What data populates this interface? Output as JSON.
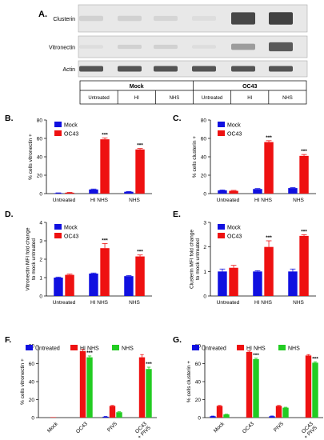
{
  "panel_a": {
    "letter": "A.",
    "rows": [
      "Clusterin",
      "Vitronectin",
      "Actin"
    ],
    "groups": [
      "Mock",
      "OC43"
    ],
    "lanes": [
      "Untreated",
      "HI",
      "NHS",
      "Untreated",
      "HI",
      "NHS"
    ]
  },
  "colors": {
    "mock": "#1010e0",
    "oc43": "#ee1111",
    "untreated": "#1010e0",
    "hi_nhs": "#ee1111",
    "nhs": "#22cc22"
  },
  "chart_data": [
    {
      "id": "B",
      "letter": "B.",
      "type": "bar",
      "ylabel": "% cells vitronectin +",
      "categories": [
        "Untreated",
        "HI NHS",
        "NHS"
      ],
      "ylim": [
        0,
        80
      ],
      "yticks": [
        0,
        20,
        40,
        60,
        80
      ],
      "series": [
        {
          "name": "Mock",
          "color": "#1010e0",
          "values": [
            0.5,
            4.5,
            2
          ],
          "errors": [
            0.3,
            0.5,
            0.3
          ],
          "sig": [
            "",
            "",
            ""
          ]
        },
        {
          "name": "OC43",
          "color": "#ee1111",
          "values": [
            1,
            59,
            48
          ],
          "errors": [
            0.3,
            1.5,
            1
          ],
          "sig": [
            "",
            "***",
            "***"
          ]
        }
      ]
    },
    {
      "id": "C",
      "letter": "C.",
      "type": "bar",
      "ylabel": "% cells clusterin +",
      "categories": [
        "Untreated",
        "HI NHS",
        "NHS"
      ],
      "ylim": [
        0,
        80
      ],
      "yticks": [
        0,
        20,
        40,
        60,
        80
      ],
      "series": [
        {
          "name": "Mock",
          "color": "#1010e0",
          "values": [
            3.5,
            5,
            6
          ],
          "errors": [
            0.5,
            0.5,
            0.5
          ],
          "sig": [
            "",
            "",
            ""
          ]
        },
        {
          "name": "OC43",
          "color": "#ee1111",
          "values": [
            3,
            56,
            41
          ],
          "errors": [
            0.5,
            1.5,
            1.5
          ],
          "sig": [
            "",
            "***",
            "***"
          ]
        }
      ]
    },
    {
      "id": "D",
      "letter": "D.",
      "type": "bar",
      "ylabel": "Vitronectin MFI fold change to mock untreated",
      "categories": [
        "Untreated",
        "HI NHS",
        "NHS"
      ],
      "ylim": [
        0,
        4
      ],
      "yticks": [
        0,
        1,
        2,
        3,
        4
      ],
      "series": [
        {
          "name": "Mock",
          "color": "#1010e0",
          "values": [
            1,
            1.22,
            1.08
          ],
          "errors": [
            0.03,
            0.03,
            0.03
          ],
          "sig": [
            "",
            "",
            ""
          ]
        },
        {
          "name": "OC43",
          "color": "#ee1111",
          "values": [
            1.15,
            2.6,
            2.15
          ],
          "errors": [
            0.04,
            0.25,
            0.08
          ],
          "sig": [
            "",
            "***",
            "***"
          ]
        }
      ]
    },
    {
      "id": "E",
      "letter": "E.",
      "type": "bar",
      "ylabel": "Clusterin MFI fold change to mock untreated",
      "categories": [
        "Untreated",
        "HI NHS",
        "NHS"
      ],
      "ylim": [
        0,
        3
      ],
      "yticks": [
        0,
        1,
        2,
        3
      ],
      "series": [
        {
          "name": "Mock",
          "color": "#1010e0",
          "values": [
            1.0,
            1.0,
            1.0
          ],
          "errors": [
            0.1,
            0.03,
            0.1
          ],
          "sig": [
            "",
            "",
            ""
          ]
        },
        {
          "name": "OC43",
          "color": "#ee1111",
          "values": [
            1.15,
            2.0,
            2.45
          ],
          "errors": [
            0.1,
            0.25,
            0.05
          ],
          "sig": [
            "",
            "***",
            "***"
          ]
        }
      ]
    },
    {
      "id": "F",
      "letter": "F.",
      "type": "bar",
      "ylabel": "% cells vitronectin +",
      "categories": [
        "Mock",
        "OC43",
        "PIV5",
        "OC43\n+ PIV5"
      ],
      "ylim": [
        0,
        80
      ],
      "yticks": [
        0,
        20,
        40,
        60,
        80
      ],
      "series": [
        {
          "name": "Untreated",
          "color": "#1010e0",
          "values": [
            0,
            0,
            1,
            0
          ],
          "errors": [
            0,
            0,
            0.3,
            0
          ],
          "sig": [
            "",
            "",
            "",
            ""
          ]
        },
        {
          "name": "HI NHS",
          "color": "#ee1111",
          "values": [
            0.5,
            74,
            13,
            67
          ],
          "errors": [
            0,
            2,
            0.5,
            3
          ],
          "sig": [
            "",
            "",
            "",
            ""
          ]
        },
        {
          "name": "NHS",
          "color": "#22cc22",
          "values": [
            0,
            67,
            6,
            54
          ],
          "errors": [
            0,
            1.5,
            0.5,
            2
          ],
          "sig": [
            "",
            "***",
            "",
            "***"
          ]
        }
      ]
    },
    {
      "id": "G",
      "letter": "G.",
      "type": "bar",
      "ylabel": "% cells clusterin +",
      "categories": [
        "Mock",
        "OC43",
        "PIV5",
        "OC43\n+ PIV5"
      ],
      "ylim": [
        0,
        80
      ],
      "yticks": [
        0,
        20,
        40,
        60,
        80
      ],
      "series": [
        {
          "name": "Untreated",
          "color": "#1010e0",
          "values": [
            1.5,
            0,
            1.5,
            0
          ],
          "errors": [
            0.2,
            0,
            0.3,
            0
          ],
          "sig": [
            "",
            "",
            "",
            ""
          ]
        },
        {
          "name": "HI NHS",
          "color": "#ee1111",
          "values": [
            13,
            73,
            13,
            69
          ],
          "errors": [
            0.5,
            1,
            0.5,
            1
          ],
          "sig": [
            "",
            "",
            "",
            ""
          ]
        },
        {
          "name": "NHS",
          "color": "#22cc22",
          "values": [
            3.5,
            65,
            11,
            61
          ],
          "errors": [
            0.3,
            1,
            0.5,
            1
          ],
          "sig": [
            "",
            "***",
            "",
            "***"
          ]
        }
      ]
    }
  ]
}
